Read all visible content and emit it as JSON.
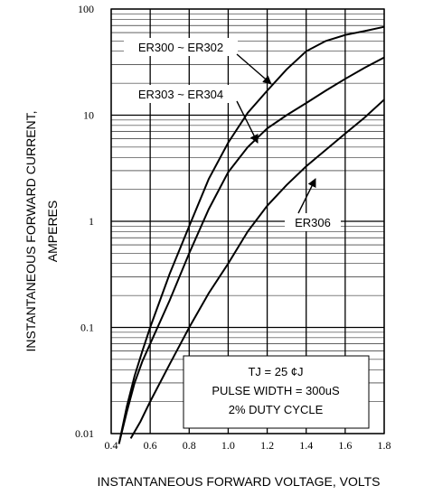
{
  "chart_data": {
    "type": "line",
    "title": "",
    "xlabel": "INSTANTANEOUS FORWARD VOLTAGE, VOLTS",
    "ylabel_line1": "INSTANTANEOUS FORWARD CURRENT,",
    "ylabel_line2": "AMPERES",
    "xlim": [
      0.4,
      1.8
    ],
    "ylim": [
      0.01,
      100
    ],
    "yscale": "log",
    "grid": true,
    "x_ticks": [
      "0.4",
      "0.6",
      "0.8",
      "1.0",
      "1.2",
      "1.4",
      "1.6",
      "1.8"
    ],
    "y_ticks": [
      "0.01",
      "0.1",
      "1",
      "10",
      "100"
    ],
    "series": [
      {
        "name": "ER300 ~ ER302",
        "x": [
          0.44,
          0.48,
          0.52,
          0.56,
          0.6,
          0.7,
          0.8,
          0.9,
          1.0,
          1.1,
          1.2,
          1.3,
          1.4,
          1.5,
          1.6,
          1.7,
          1.8
        ],
        "y": [
          0.008,
          0.018,
          0.035,
          0.06,
          0.1,
          0.32,
          0.9,
          2.5,
          5.5,
          10.5,
          17,
          27,
          40,
          50,
          57,
          62,
          68
        ]
      },
      {
        "name": "ER303 ~ ER304",
        "x": [
          0.44,
          0.48,
          0.52,
          0.56,
          0.6,
          0.7,
          0.8,
          0.9,
          1.0,
          1.1,
          1.2,
          1.3,
          1.4,
          1.5,
          1.6,
          1.7,
          1.8
        ],
        "y": [
          0.008,
          0.016,
          0.03,
          0.048,
          0.07,
          0.18,
          0.5,
          1.3,
          2.9,
          5.0,
          7.5,
          10.0,
          13.0,
          17.0,
          22.0,
          28.0,
          35.0
        ]
      },
      {
        "name": "ER306",
        "x": [
          0.5,
          0.55,
          0.6,
          0.7,
          0.8,
          0.9,
          1.0,
          1.1,
          1.2,
          1.3,
          1.4,
          1.5,
          1.6,
          1.7,
          1.8
        ],
        "y": [
          0.009,
          0.013,
          0.02,
          0.045,
          0.1,
          0.21,
          0.4,
          0.8,
          1.4,
          2.2,
          3.3,
          4.7,
          6.7,
          9.5,
          14.0
        ]
      }
    ],
    "annotation_lines": [
      "TJ = 25 ¢J",
      "PULSE WIDTH = 300uS",
      "2% DUTY CYCLE"
    ]
  }
}
